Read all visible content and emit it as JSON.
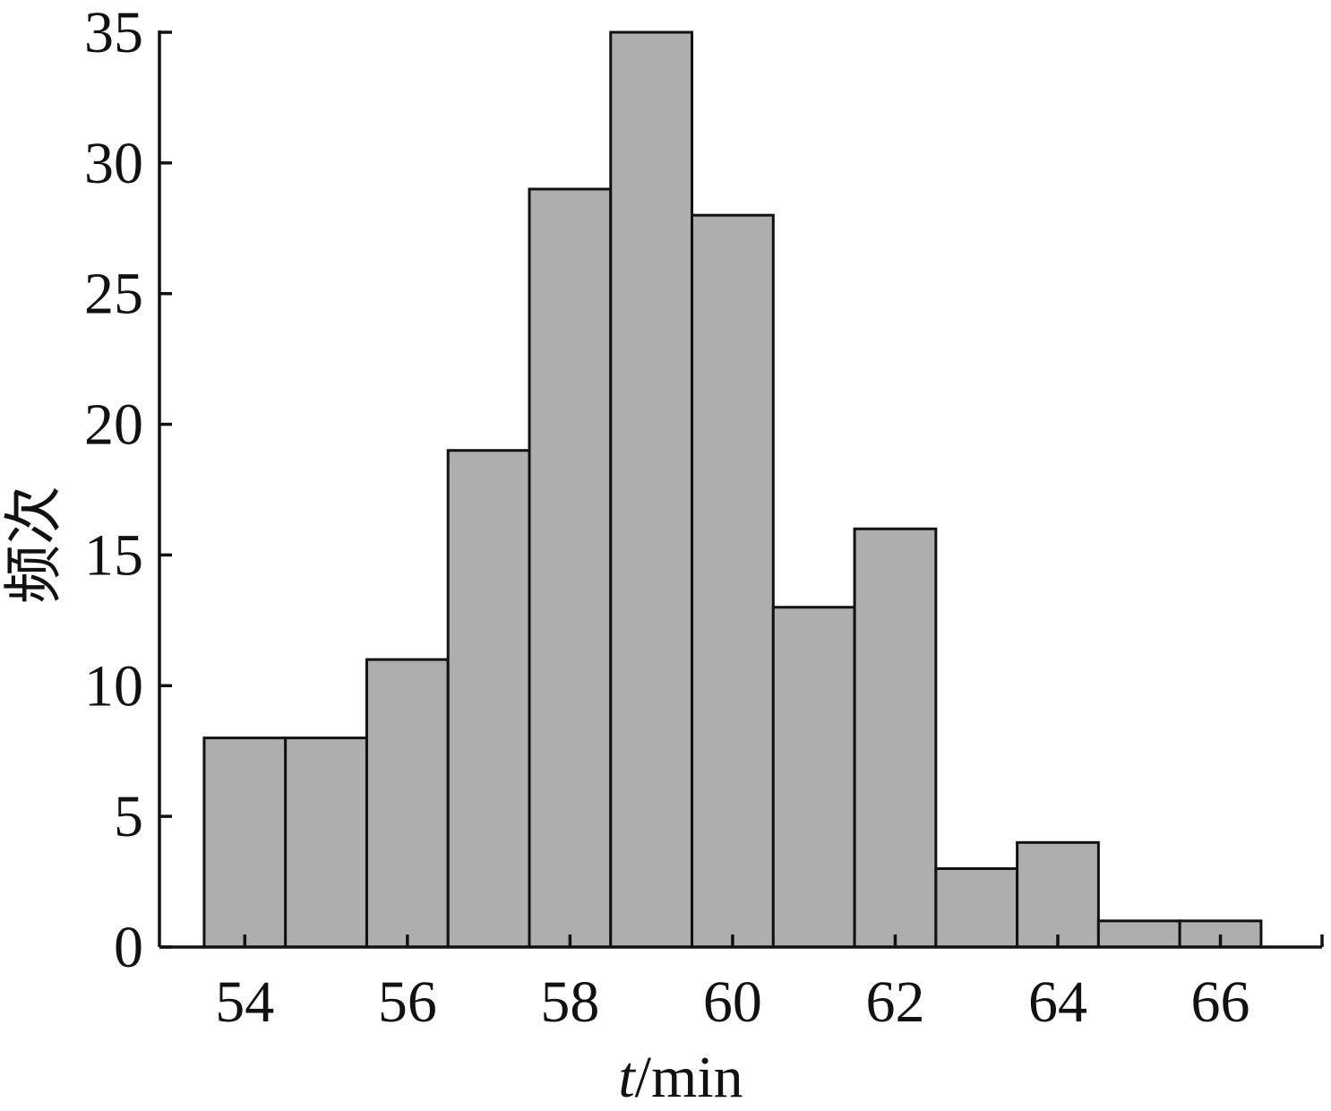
{
  "chart_data": {
    "type": "bar",
    "title": "",
    "xlabel": {
      "var": "t",
      "unit": "/min"
    },
    "ylabel": "频次",
    "x": [
      54,
      55,
      56,
      57,
      58,
      59,
      60,
      61,
      62,
      63,
      64,
      65,
      66
    ],
    "values": [
      8,
      8,
      11,
      19,
      29,
      35,
      28,
      13,
      16,
      3,
      4,
      1,
      1
    ],
    "bin_width": 1,
    "xlim": [
      52.95,
      67.25
    ],
    "ylim": [
      0,
      35
    ],
    "xticks": [
      "54",
      "56",
      "58",
      "60",
      "62",
      "64",
      "66"
    ],
    "yticks": [
      "0",
      "5",
      "10",
      "15",
      "20",
      "25",
      "30",
      "35"
    ],
    "bar_color": "#aeaeae",
    "edge_color": "#111111",
    "grid": false,
    "legend": "none"
  }
}
